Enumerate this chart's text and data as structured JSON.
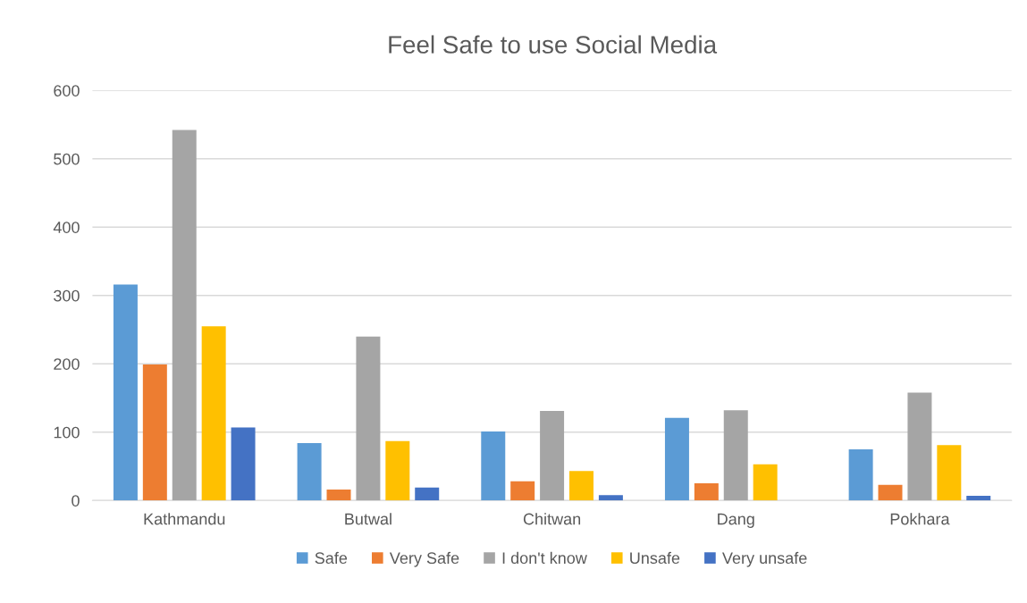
{
  "chart_data": {
    "type": "bar",
    "title": "Feel Safe to use Social Media",
    "categories": [
      "Kathmandu",
      "Butwal",
      "Chitwan",
      "Dang",
      "Pokhara"
    ],
    "series": [
      {
        "name": "Safe",
        "color": "#5b9bd5",
        "values": [
          316,
          84,
          101,
          121,
          75
        ]
      },
      {
        "name": "Very Safe",
        "color": "#ed7d31",
        "values": [
          199,
          16,
          28,
          25,
          23
        ]
      },
      {
        "name": "I don't know",
        "color": "#a5a5a5",
        "values": [
          542,
          240,
          131,
          132,
          158
        ]
      },
      {
        "name": "Unsafe",
        "color": "#ffc000",
        "values": [
          255,
          87,
          43,
          53,
          81
        ]
      },
      {
        "name": "Very unsafe",
        "color": "#4472c4",
        "values": [
          107,
          19,
          8,
          0,
          7
        ]
      }
    ],
    "ylim": [
      0,
      600
    ],
    "yticks": [
      0,
      100,
      200,
      300,
      400,
      500,
      600
    ],
    "grid": "y",
    "legend": "bottom"
  }
}
